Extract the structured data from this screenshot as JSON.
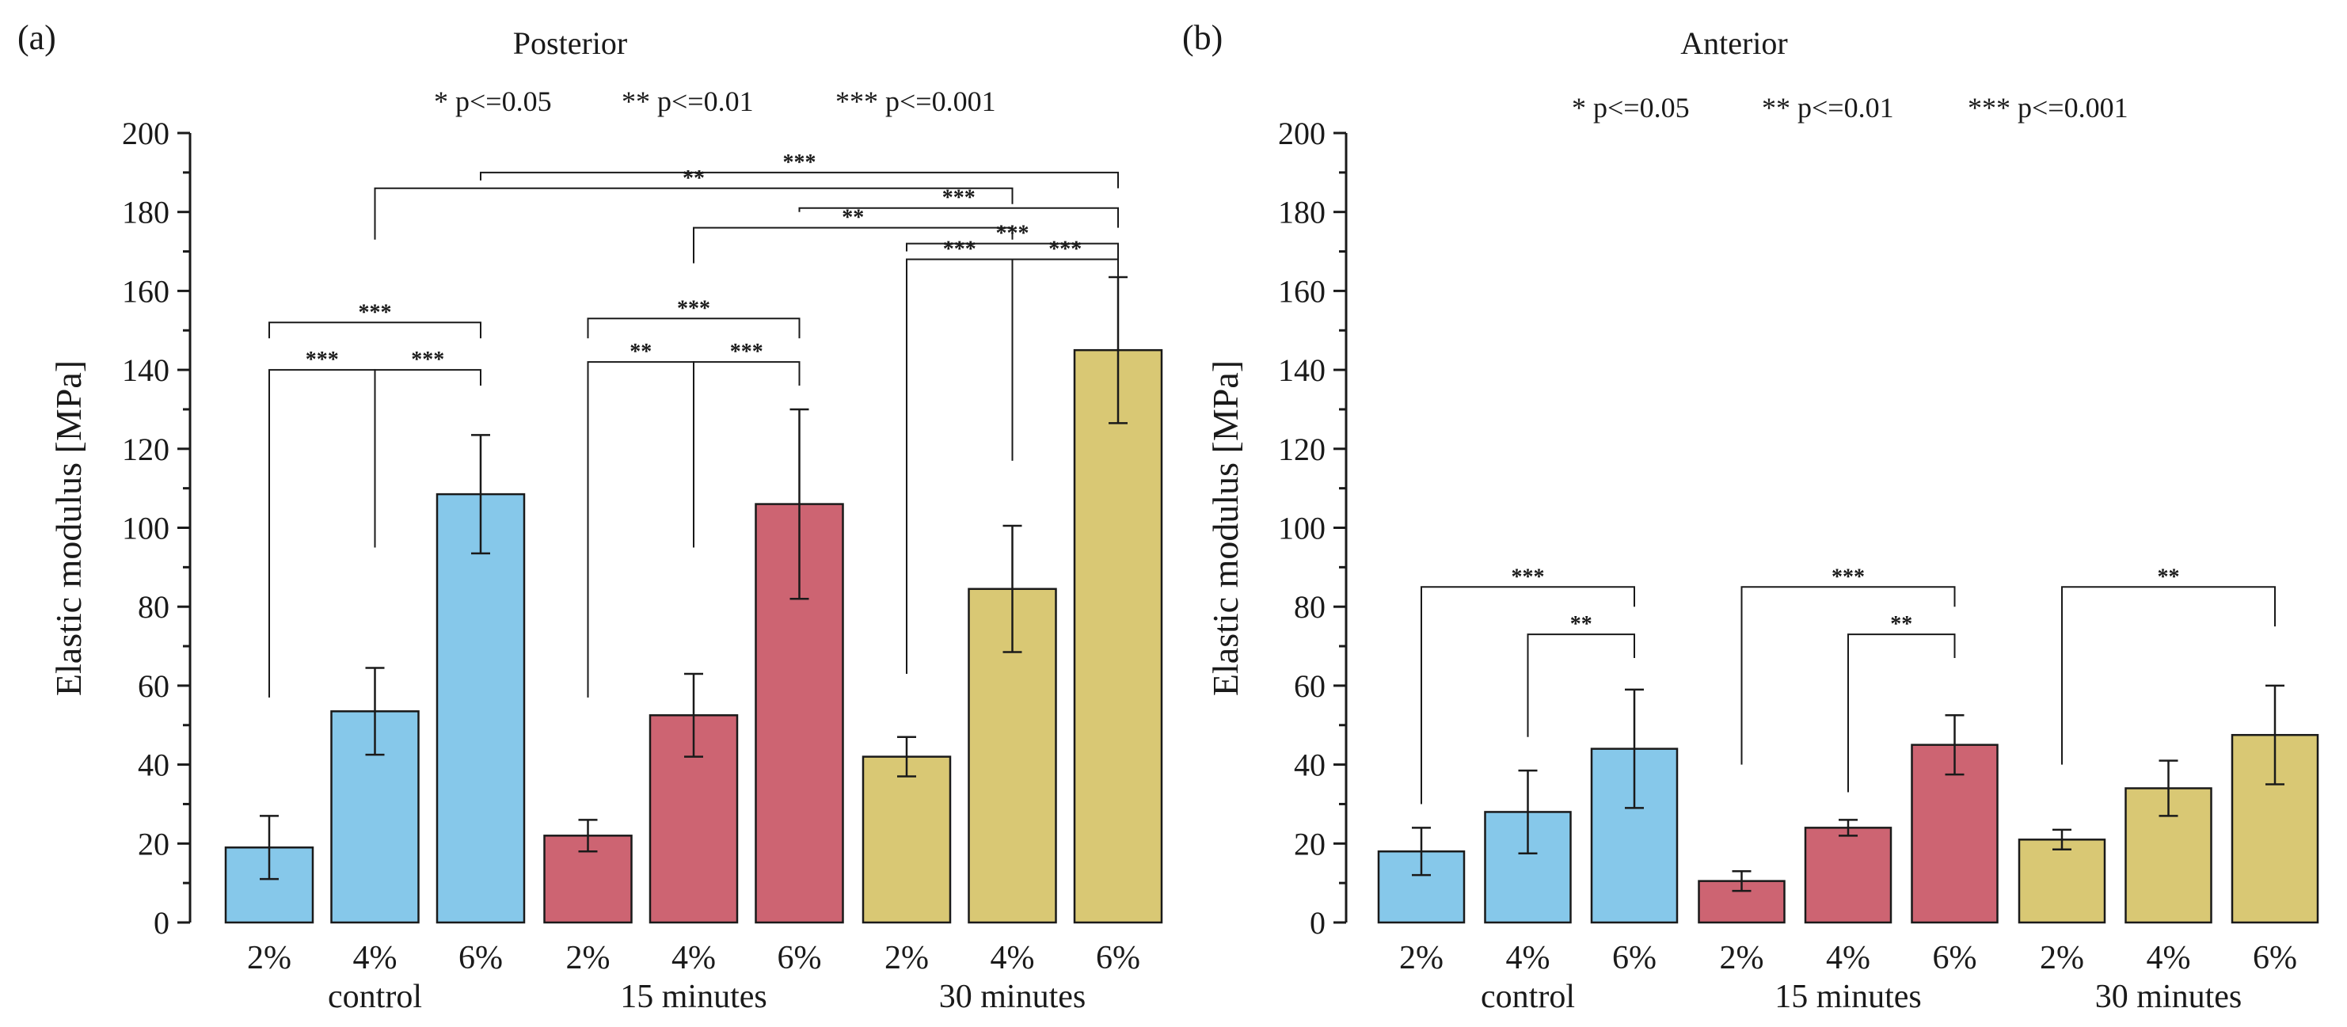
{
  "colors": {
    "control": "#86c8ea",
    "15 minutes": "#cd6472",
    "30 minutes": "#d9c874"
  },
  "chart_data": [
    {
      "panel_label": "(a)",
      "type": "bar",
      "title": "Posterior",
      "legend": [
        "* p<=0.05",
        "** p<=0.01",
        "*** p<=0.001"
      ],
      "ylabel": "Elastic modulus [MPa]",
      "ylim": [
        0,
        200
      ],
      "yticks": [
        0,
        20,
        40,
        60,
        80,
        100,
        120,
        140,
        160,
        180,
        200
      ],
      "groups": [
        "control",
        "15 minutes",
        "30 minutes"
      ],
      "categories": [
        "2%",
        "4%",
        "6%"
      ],
      "series": [
        {
          "name": "control",
          "values": [
            19,
            53.5,
            108.5
          ],
          "errors": [
            8,
            11,
            15
          ]
        },
        {
          "name": "15 minutes",
          "values": [
            22,
            52.5,
            106
          ],
          "errors": [
            4,
            10.5,
            24
          ]
        },
        {
          "name": "30 minutes",
          "values": [
            42,
            84.5,
            145
          ],
          "errors": [
            5,
            16,
            18.5
          ]
        }
      ],
      "significance": [
        {
          "from": [
            0,
            0
          ],
          "to": [
            0,
            1
          ],
          "label": "***",
          "level": 140,
          "from_y": 57,
          "to_y": 95
        },
        {
          "from": [
            0,
            1
          ],
          "to": [
            0,
            2
          ],
          "label": "***",
          "level": 140,
          "from_y": 95,
          "to_y": 136
        },
        {
          "from": [
            0,
            0
          ],
          "to": [
            0,
            2
          ],
          "label": "***",
          "level": 152,
          "from_y": 148,
          "to_y": 148
        },
        {
          "from": [
            1,
            0
          ],
          "to": [
            1,
            1
          ],
          "label": "**",
          "level": 142,
          "from_y": 57,
          "to_y": 95
        },
        {
          "from": [
            1,
            1
          ],
          "to": [
            1,
            2
          ],
          "label": "***",
          "level": 142,
          "from_y": 95,
          "to_y": 136
        },
        {
          "from": [
            1,
            0
          ],
          "to": [
            1,
            2
          ],
          "label": "***",
          "level": 153,
          "from_y": 148,
          "to_y": 148
        },
        {
          "from": [
            2,
            0
          ],
          "to": [
            2,
            1
          ],
          "label": "***",
          "level": 168,
          "from_y": 63,
          "to_y": 117
        },
        {
          "from": [
            2,
            1
          ],
          "to": [
            2,
            2
          ],
          "label": "***",
          "level": 168,
          "from_y": 117,
          "to_y": 162
        },
        {
          "from": [
            2,
            0
          ],
          "to": [
            2,
            2
          ],
          "label": "***",
          "level": 172,
          "from_y": 170,
          "to_y": 165
        },
        {
          "from": [
            1,
            1
          ],
          "to": [
            2,
            1
          ],
          "label": "**",
          "level": 176,
          "from_y": 167,
          "to_y": 173
        },
        {
          "from": [
            1,
            2
          ],
          "to": [
            2,
            2
          ],
          "label": "***",
          "level": 181,
          "from_y": 180,
          "to_y": 176
        },
        {
          "from": [
            0,
            1
          ],
          "to": [
            2,
            1
          ],
          "label": "**",
          "level": 186,
          "from_y": 173,
          "to_y": 182
        },
        {
          "from": [
            0,
            2
          ],
          "to": [
            2,
            2
          ],
          "label": "***",
          "level": 190,
          "from_y": 188,
          "to_y": 186
        }
      ]
    },
    {
      "panel_label": "(b)",
      "type": "bar",
      "title": "Anterior",
      "legend": [
        "* p<=0.05",
        "** p<=0.01",
        "*** p<=0.001"
      ],
      "ylabel": "Elastic modulus [MPa]",
      "ylim": [
        0,
        200
      ],
      "yticks": [
        0,
        20,
        40,
        60,
        80,
        100,
        120,
        140,
        160,
        180,
        200
      ],
      "groups": [
        "control",
        "15 minutes",
        "30 minutes"
      ],
      "categories": [
        "2%",
        "4%",
        "6%"
      ],
      "series": [
        {
          "name": "control",
          "values": [
            18,
            28,
            44
          ],
          "errors": [
            6,
            10.5,
            15
          ]
        },
        {
          "name": "15 minutes",
          "values": [
            10.5,
            24,
            45
          ],
          "errors": [
            2.5,
            2,
            7.5
          ]
        },
        {
          "name": "30 minutes",
          "values": [
            21,
            34,
            47.5
          ],
          "errors": [
            2.5,
            7,
            12.5
          ]
        }
      ],
      "significance": [
        {
          "from": [
            0,
            0
          ],
          "to": [
            0,
            2
          ],
          "label": "***",
          "level": 85,
          "from_y": 30,
          "to_y": 80
        },
        {
          "from": [
            0,
            1
          ],
          "to": [
            0,
            2
          ],
          "label": "**",
          "level": 73,
          "from_y": 47,
          "to_y": 67
        },
        {
          "from": [
            1,
            0
          ],
          "to": [
            1,
            2
          ],
          "label": "***",
          "level": 85,
          "from_y": 40,
          "to_y": 80
        },
        {
          "from": [
            1,
            1
          ],
          "to": [
            1,
            2
          ],
          "label": "**",
          "level": 73,
          "from_y": 33,
          "to_y": 67
        },
        {
          "from": [
            2,
            0
          ],
          "to": [
            2,
            2
          ],
          "label": "**",
          "level": 85,
          "from_y": 40,
          "to_y": 75
        }
      ]
    }
  ]
}
